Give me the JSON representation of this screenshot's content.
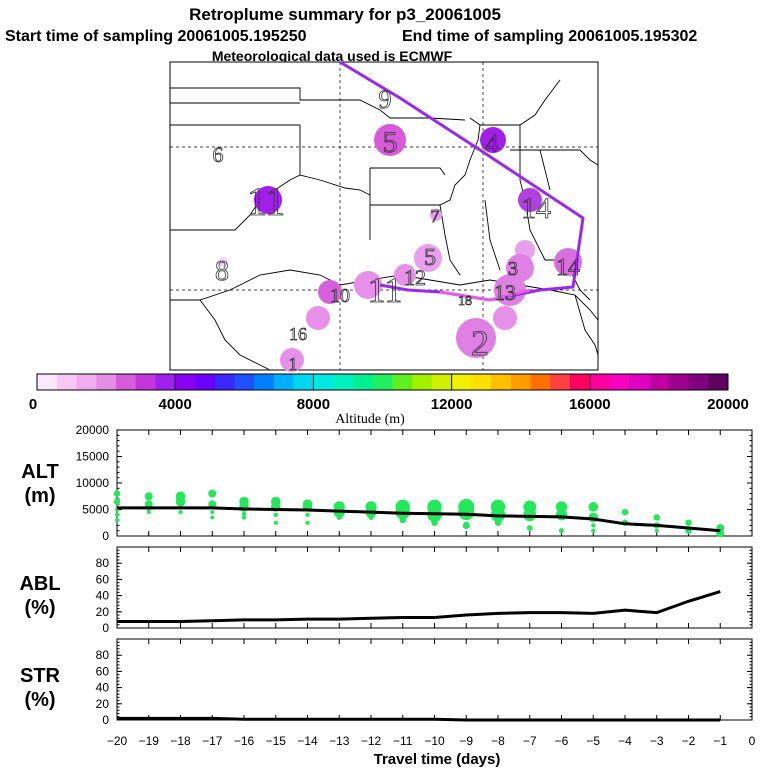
{
  "header": {
    "title": "Retroplume summary for p3_20061005",
    "start": "Start time of sampling 20061005.195250",
    "end": "End time of sampling 20061005.195302",
    "met": "Meteorological data used is ECMWF"
  },
  "colors": {
    "scale": [
      "#fce8fc",
      "#f5c8f5",
      "#f0aef0",
      "#e68de6",
      "#d65cd9",
      "#c236dc",
      "#a020f0",
      "#8a00f0",
      "#6a00ff",
      "#3c28ff",
      "#2050ff",
      "#0080ff",
      "#00b0ff",
      "#00d8f0",
      "#00e8e0",
      "#00f0c0",
      "#00f090",
      "#20f060",
      "#60f020",
      "#a0f000",
      "#d0f000",
      "#f0f000",
      "#ffe000",
      "#ffc000",
      "#ff9c00",
      "#ff7000",
      "#ff4040",
      "#ff0060",
      "#ff00a0",
      "#f800c0",
      "#e000c0",
      "#c000a0",
      "#a00090",
      "#800080",
      "#600060"
    ],
    "track": "#9a28f0",
    "track_light": "#e060e8",
    "points": "#22e85a",
    "line": "#000000"
  },
  "map": {
    "labels": [
      {
        "text": "9",
        "color": "#d6b0e8"
      },
      {
        "text": "6",
        "color": "#d070d8"
      },
      {
        "text": "5",
        "color": "#d050d8"
      },
      {
        "text": "4",
        "color": "#9a20e8"
      },
      {
        "text": "11",
        "color": "#a020e8"
      },
      {
        "text": "14",
        "color": "#b040e0"
      },
      {
        "text": "7",
        "color": "#e090e8"
      },
      {
        "text": "8",
        "color": "#f0c8f0"
      },
      {
        "text": "3",
        "color": "#c050d8"
      },
      {
        "text": "5",
        "color": "#e070e0"
      },
      {
        "text": "10",
        "color": "#d060d8"
      },
      {
        "text": "11",
        "color": "#e080e0"
      },
      {
        "text": "12",
        "color": "#e080e0"
      },
      {
        "text": "13",
        "color": "#d060d8"
      },
      {
        "text": "14",
        "color": "#e080e0"
      },
      {
        "text": "16",
        "color": "#d860dc"
      },
      {
        "text": "18",
        "color": "#e080e0"
      },
      {
        "text": "2",
        "color": "#e080e0"
      },
      {
        "text": "1",
        "color": "#d060d8"
      }
    ]
  },
  "colorbar": {
    "ticks": [
      "0",
      "4000",
      "8000",
      "12000",
      "16000",
      "20000"
    ],
    "label": "Altitude (m)"
  },
  "chart_data": [
    {
      "type": "scatter",
      "title": "ALT (m)",
      "ylabel_line1": "ALT",
      "ylabel_line2": "(m)",
      "ylim": [
        0,
        20000
      ],
      "yticks": [
        "0",
        "5000",
        "10000",
        "15000",
        "20000"
      ],
      "xlim": [
        -20,
        0
      ],
      "line": {
        "x": [
          -20,
          -19,
          -18,
          -17,
          -16,
          -15,
          -14,
          -13,
          -12,
          -11,
          -10,
          -9,
          -8,
          -7,
          -6,
          -5,
          -4,
          -3,
          -2,
          -1
        ],
        "y": [
          5300,
          5300,
          5300,
          5300,
          5100,
          5000,
          4900,
          4700,
          4500,
          4300,
          4200,
          4100,
          3800,
          3700,
          3600,
          3200,
          2300,
          2000,
          1500,
          1000
        ]
      },
      "points": [
        {
          "x": -20,
          "y": [
            8000,
            6500,
            5000,
            4000,
            3000
          ]
        },
        {
          "x": -19,
          "y": [
            7500,
            6000,
            5000,
            4500
          ]
        },
        {
          "x": -18,
          "y": [
            7500,
            6500,
            5500,
            4500
          ]
        },
        {
          "x": -17,
          "y": [
            8000,
            6000,
            4500,
            3500
          ]
        },
        {
          "x": -16,
          "y": [
            6500,
            5500,
            4200,
            3500
          ]
        },
        {
          "x": -15,
          "y": [
            6500,
            5500,
            4000,
            2500
          ]
        },
        {
          "x": -14,
          "y": [
            6000,
            5500,
            4000,
            2500
          ]
        },
        {
          "x": -13,
          "y": [
            5500,
            4500,
            3500
          ]
        },
        {
          "x": -12,
          "y": [
            5500,
            4500,
            3500
          ]
        },
        {
          "x": -11,
          "y": [
            5500,
            4500,
            3000
          ]
        },
        {
          "x": -10,
          "y": [
            5500,
            4000,
            2500
          ]
        },
        {
          "x": -9,
          "y": [
            5500,
            4500,
            2000
          ]
        },
        {
          "x": -8,
          "y": [
            5500,
            4000,
            2500
          ]
        },
        {
          "x": -7,
          "y": [
            5500,
            4000,
            1500
          ]
        },
        {
          "x": -6,
          "y": [
            5500,
            4000,
            1000
          ]
        },
        {
          "x": -5,
          "y": [
            5500,
            3500,
            2000,
            1000
          ]
        },
        {
          "x": -4,
          "y": [
            4500,
            2500
          ]
        },
        {
          "x": -3,
          "y": [
            3500,
            2000,
            1000
          ]
        },
        {
          "x": -2,
          "y": [
            2500,
            1000
          ]
        },
        {
          "x": -1,
          "y": [
            1500,
            500
          ]
        }
      ],
      "point_sizes": [
        4,
        5,
        6,
        5,
        6,
        6,
        6,
        7,
        7,
        9,
        9,
        10,
        9,
        8,
        7,
        6,
        4,
        4,
        4,
        5
      ]
    },
    {
      "type": "line",
      "title": "ABL (%)",
      "ylabel_line1": "ABL",
      "ylabel_line2": "(%)",
      "ylim": [
        0,
        100
      ],
      "yticks": [
        "0",
        "20",
        "40",
        "60",
        "80"
      ],
      "xlim": [
        -20,
        0
      ],
      "x": [
        -20,
        -19,
        -18,
        -17,
        -16,
        -15,
        -14,
        -13,
        -12,
        -11,
        -10,
        -9,
        -8,
        -7,
        -6,
        -5,
        -4,
        -3,
        -2,
        -1
      ],
      "y": [
        8,
        8,
        8,
        9,
        10,
        10,
        11,
        11,
        12,
        13,
        13,
        16,
        18,
        19,
        19,
        18,
        22,
        19,
        33,
        45
      ]
    },
    {
      "type": "line",
      "title": "STR (%)",
      "ylabel_line1": "STR",
      "ylabel_line2": "(%)",
      "ylim": [
        0,
        100
      ],
      "yticks": [
        "0",
        "20",
        "40",
        "60",
        "80"
      ],
      "xlim": [
        -20,
        0
      ],
      "x": [
        -20,
        -19,
        -18,
        -17,
        -16,
        -15,
        -14,
        -13,
        -12,
        -11,
        -10,
        -9,
        -8,
        -7,
        -6,
        -5,
        -4,
        -3,
        -2,
        -1
      ],
      "y": [
        2,
        2,
        2,
        2,
        1,
        1,
        1,
        1,
        1,
        1,
        1,
        0,
        0,
        0,
        0,
        0,
        0,
        0,
        0,
        0
      ]
    }
  ],
  "xaxis": {
    "ticks": [
      "−20",
      "−19",
      "−18",
      "−17",
      "−16",
      "−15",
      "−14",
      "−13",
      "−12",
      "−11",
      "−10",
      "−9",
      "−8",
      "−7",
      "−6",
      "−5",
      "−4",
      "−3",
      "−2",
      "−1",
      "0"
    ],
    "label": "Travel time (days)"
  }
}
